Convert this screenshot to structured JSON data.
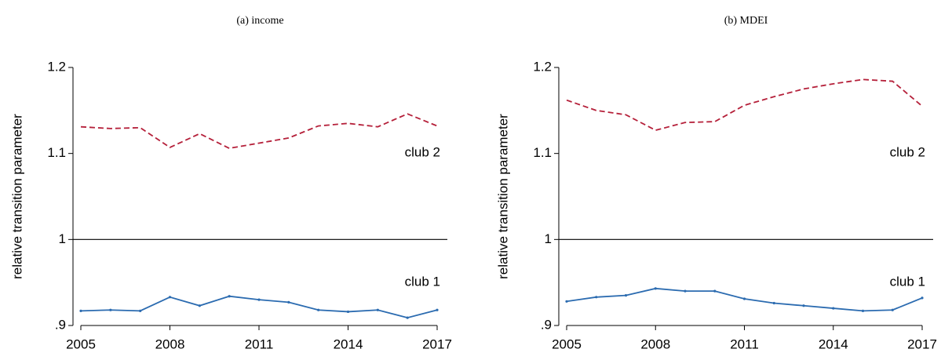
{
  "chart_data": [
    {
      "type": "line",
      "title": "(a) income",
      "ylabel": "relative transition parameter",
      "x": [
        2005,
        2006,
        2007,
        2008,
        2009,
        2010,
        2011,
        2012,
        2013,
        2014,
        2015,
        2016,
        2017
      ],
      "series": [
        {
          "name": "club 2",
          "color": "#b5203a",
          "style": "dashed",
          "values": [
            1.131,
            1.129,
            1.13,
            1.107,
            1.123,
            1.106,
            1.112,
            1.118,
            1.132,
            1.135,
            1.131,
            1.146,
            1.132
          ]
        },
        {
          "name": "club 1",
          "color": "#2b6bb0",
          "style": "solid",
          "values": [
            0.917,
            0.918,
            0.917,
            0.933,
            0.923,
            0.934,
            0.93,
            0.927,
            0.918,
            0.916,
            0.918,
            0.909,
            0.918
          ]
        }
      ],
      "xlim": [
        2005,
        2017
      ],
      "xticks": [
        2005,
        2008,
        2011,
        2014,
        2017
      ],
      "ylim": [
        0.9,
        1.2
      ],
      "yticks": [
        {
          "value": 0.9,
          "label": ".9"
        },
        1,
        1.1,
        1.2
      ],
      "reference_line": 1
    },
    {
      "type": "line",
      "title": "(b) MDEI",
      "ylabel": "relative transition parameter",
      "x": [
        2005,
        2006,
        2007,
        2008,
        2009,
        2010,
        2011,
        2012,
        2013,
        2014,
        2015,
        2016,
        2017
      ],
      "series": [
        {
          "name": "club 2",
          "color": "#b5203a",
          "style": "dashed",
          "values": [
            1.162,
            1.15,
            1.145,
            1.127,
            1.136,
            1.137,
            1.156,
            1.166,
            1.175,
            1.181,
            1.186,
            1.184,
            1.155
          ]
        },
        {
          "name": "club 1",
          "color": "#2b6bb0",
          "style": "solid",
          "values": [
            0.928,
            0.933,
            0.935,
            0.943,
            0.94,
            0.94,
            0.931,
            0.926,
            0.923,
            0.92,
            0.917,
            0.918,
            0.932
          ]
        }
      ],
      "xlim": [
        2005,
        2017
      ],
      "xticks": [
        2005,
        2008,
        2011,
        2014,
        2017
      ],
      "ylim": [
        0.9,
        1.2
      ],
      "yticks": [
        {
          "value": 0.9,
          "label": ".9"
        },
        1,
        1.1,
        1.2
      ],
      "reference_line": 1
    }
  ]
}
